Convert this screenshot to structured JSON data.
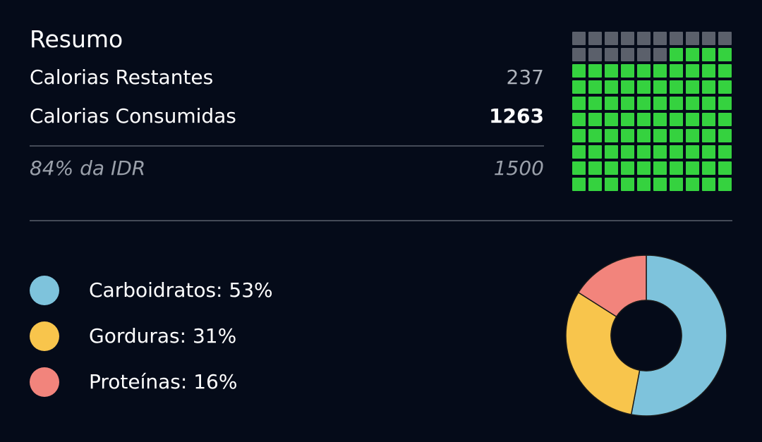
{
  "summary": {
    "title": "Resumo",
    "remaining_label": "Calorias Restantes",
    "remaining_value": "237",
    "consumed_label": "Calorias Consumidas",
    "consumed_value": "1263",
    "idr_label": "84% da IDR",
    "idr_value": "1500"
  },
  "calorie_grid": {
    "total_cells": 100,
    "filled_cells": 84,
    "filled_color": "#35d23f",
    "empty_color": "#5b606b"
  },
  "macros": {
    "items": [
      {
        "label": "Carboidratos: 53%",
        "percent": 53,
        "color": "#7ec3dc"
      },
      {
        "label": "Gorduras: 31%",
        "percent": 31,
        "color": "#f8c54c"
      },
      {
        "label": "Proteínas: 16%",
        "percent": 16,
        "color": "#f2847c"
      }
    ]
  },
  "chart_data": {
    "type": "pie",
    "categories": [
      "Carboidratos",
      "Gorduras",
      "Proteínas"
    ],
    "values": [
      53,
      31,
      16
    ],
    "colors": [
      "#7ec3dc",
      "#f8c54c",
      "#f2847c"
    ],
    "title": ""
  }
}
